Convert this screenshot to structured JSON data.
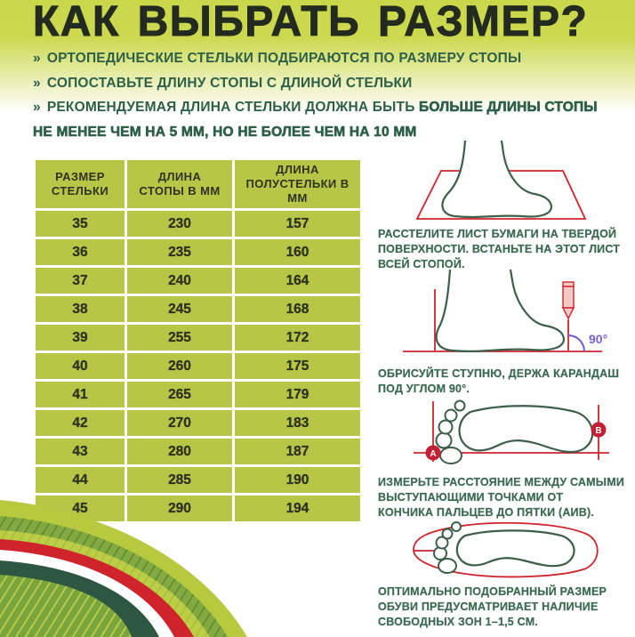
{
  "page": {
    "title": "КАК ВЫБРАТЬ РАЗМЕР?"
  },
  "bullets": {
    "marker": "»",
    "items": [
      {
        "plain": "ОРТОПЕДИЧЕСКИЕ СТЕЛЬКИ ПОДБИРАЮТСЯ ПО РАЗМЕРУ СТОПЫ",
        "bold": ""
      },
      {
        "plain": "СОПОСТАВЬТЕ ДЛИНУ СТОПЫ С ДЛИНОЙ СТЕЛЬКИ",
        "bold": ""
      },
      {
        "plain": "РЕКОМЕНДУЕМАЯ ДЛИНА СТЕЛЬКИ ДОЛЖНА БЫТЬ ",
        "bold": "БОЛЬШЕ ДЛИНЫ СТОПЫ НЕ МЕНЕЕ ЧЕМ НА 5 ММ, НО НЕ БОЛЕЕ ЧЕМ НА 10 ММ"
      }
    ]
  },
  "table": {
    "headers": [
      "РАЗМЕР\nСТЕЛЬКИ",
      "ДЛИНА\nСТОПЫ В ММ",
      "ДЛИНА\nПОЛУСТЕЛЬКИ В ММ"
    ],
    "rows": [
      [
        "35",
        "230",
        "157"
      ],
      [
        "36",
        "235",
        "160"
      ],
      [
        "37",
        "240",
        "164"
      ],
      [
        "38",
        "245",
        "168"
      ],
      [
        "39",
        "255",
        "172"
      ],
      [
        "40",
        "260",
        "175"
      ],
      [
        "41",
        "265",
        "179"
      ],
      [
        "42",
        "270",
        "183"
      ],
      [
        "43",
        "280",
        "187"
      ],
      [
        "44",
        "285",
        "190"
      ],
      [
        "45",
        "290",
        "194"
      ]
    ]
  },
  "steps": [
    {
      "icon": "foot-on-paper-icon",
      "caption": "РАССТЕЛИТЕ ЛИСТ БУМАГИ НА ТВЕРДОЙ\nПОВЕРХНОСТИ. ВСТАНЬТЕ НА ЭТОТ ЛИСТ\nВСЕЙ СТОПОЙ."
    },
    {
      "icon": "trace-foot-pencil-icon",
      "angle_label": "90°",
      "caption": "ОБРИСУЙТЕ СТУПНЮ, ДЕРЖА КАРАНДАШ\nПОД УГЛОМ 90°."
    },
    {
      "icon": "footprint-measure-icon",
      "marker_a": "А",
      "marker_b": "В",
      "caption": "ИЗМЕРЬТЕ РАССТОЯНИЕ МЕЖДУ САМЫМИ\nВЫСТУПАЮЩИМИ ТОЧКАМИ ОТ\nКОНЧИКА ПАЛЬЦЕВ ДО ПЯТКИ (АИВ)."
    },
    {
      "icon": "footprint-in-insole-icon",
      "caption": "ОПТИМАЛЬНО ПОДОБРАННЫЙ РАЗМЕР\nОБУВИ ПРЕДУСМАТРИВАЕТ НАЛИЧИЕ\nСВОБОДНЫХ ЗОН 1–1,5 СМ."
    }
  ],
  "colors": {
    "gradient_top": "#cbd84b",
    "table_cell": "#b7c646",
    "title_text": "#232b20",
    "bullet_text": "#2d5f49",
    "caption_text": "#3c6a53",
    "foot_outline": "#3c5f4b",
    "red_accent": "#cf242b",
    "purple_angle": "#7b61d6",
    "dark_wave": "#2d5741",
    "hill_green": "#79a53d"
  }
}
